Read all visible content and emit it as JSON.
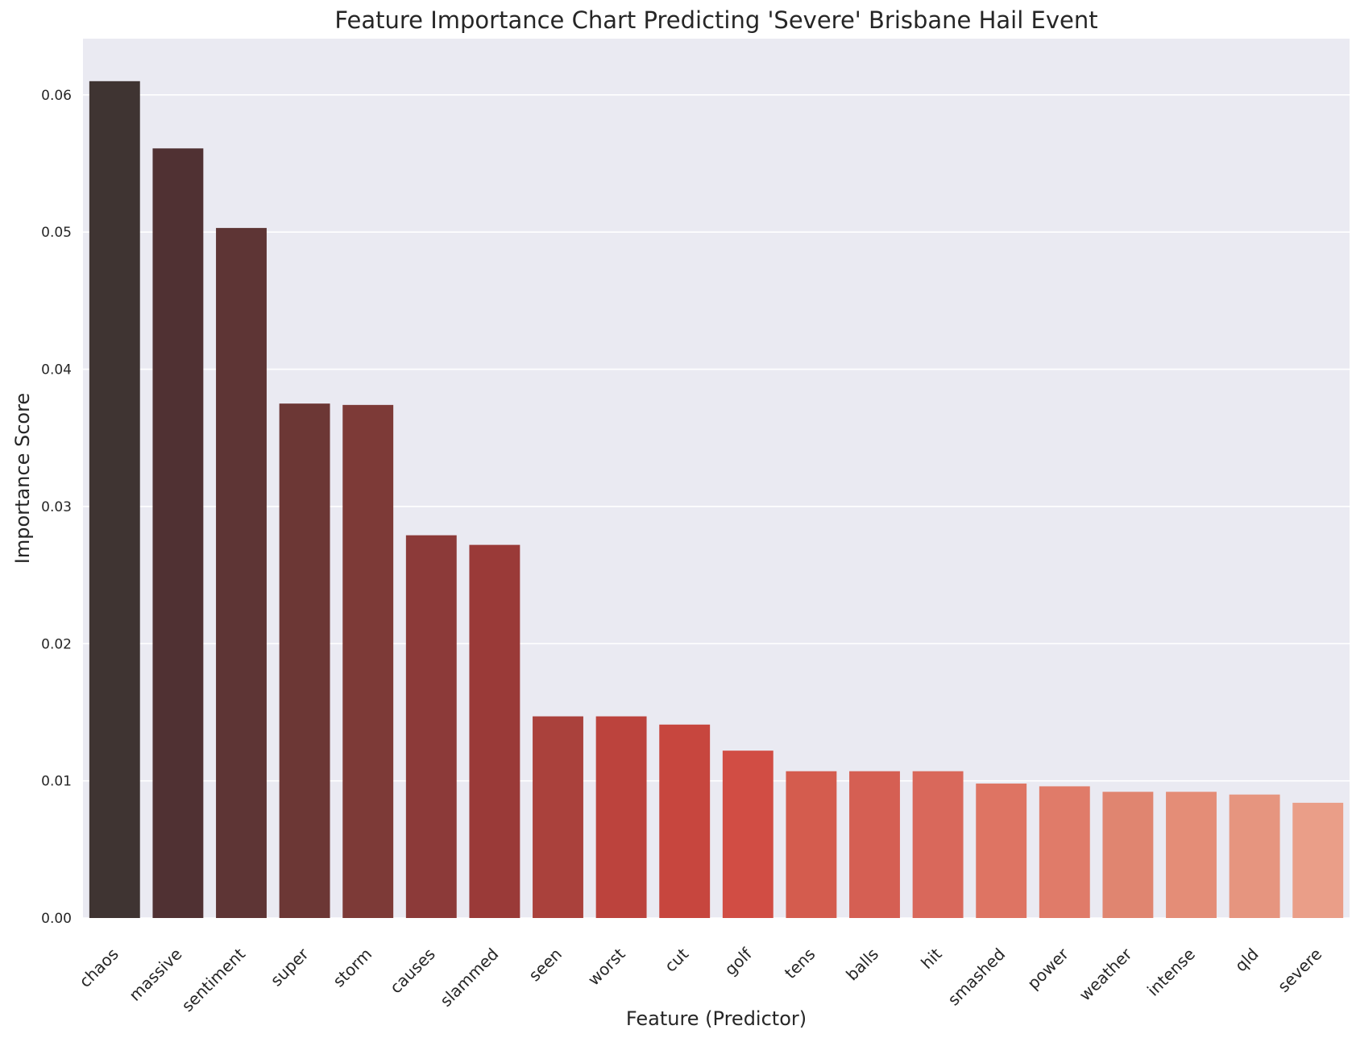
{
  "chart_data": {
    "type": "bar",
    "title": "Feature Importance Chart Predicting 'Severe' Brisbane Hail Event",
    "xlabel": "Feature (Predictor)",
    "ylabel": "Importance Score",
    "ylim": [
      0,
      0.0641
    ],
    "yticks": [
      "0.00",
      "0.01",
      "0.02",
      "0.03",
      "0.04",
      "0.05",
      "0.06"
    ],
    "categories": [
      "chaos",
      "massive",
      "sentiment",
      "super",
      "storm",
      "causes",
      "slammed",
      "seen",
      "worst",
      "cut",
      "golf",
      "tens",
      "balls",
      "hit",
      "smashed",
      "power",
      "weather",
      "intense",
      "qld",
      "severe"
    ],
    "values": [
      0.061,
      0.0561,
      0.0503,
      0.0375,
      0.0374,
      0.0279,
      0.0272,
      0.0147,
      0.0147,
      0.0141,
      0.0122,
      0.0107,
      0.0107,
      0.0107,
      0.0098,
      0.0096,
      0.0092,
      0.0092,
      0.009,
      0.0084
    ],
    "colors": [
      "#3f3432",
      "#503133",
      "#5e3535",
      "#6c3735",
      "#7d3a37",
      "#8c3a39",
      "#9a3a38",
      "#aa413c",
      "#bc433d",
      "#c7463e",
      "#d14d44",
      "#d45c4e",
      "#d55f53",
      "#d9685b",
      "#de7463",
      "#e07b69",
      "#e08570",
      "#e48d77",
      "#e6957f",
      "#ea9e88"
    ],
    "grid": true,
    "background": "#eaeaf2",
    "gridline_color": "#ffffff",
    "legend": "none"
  }
}
